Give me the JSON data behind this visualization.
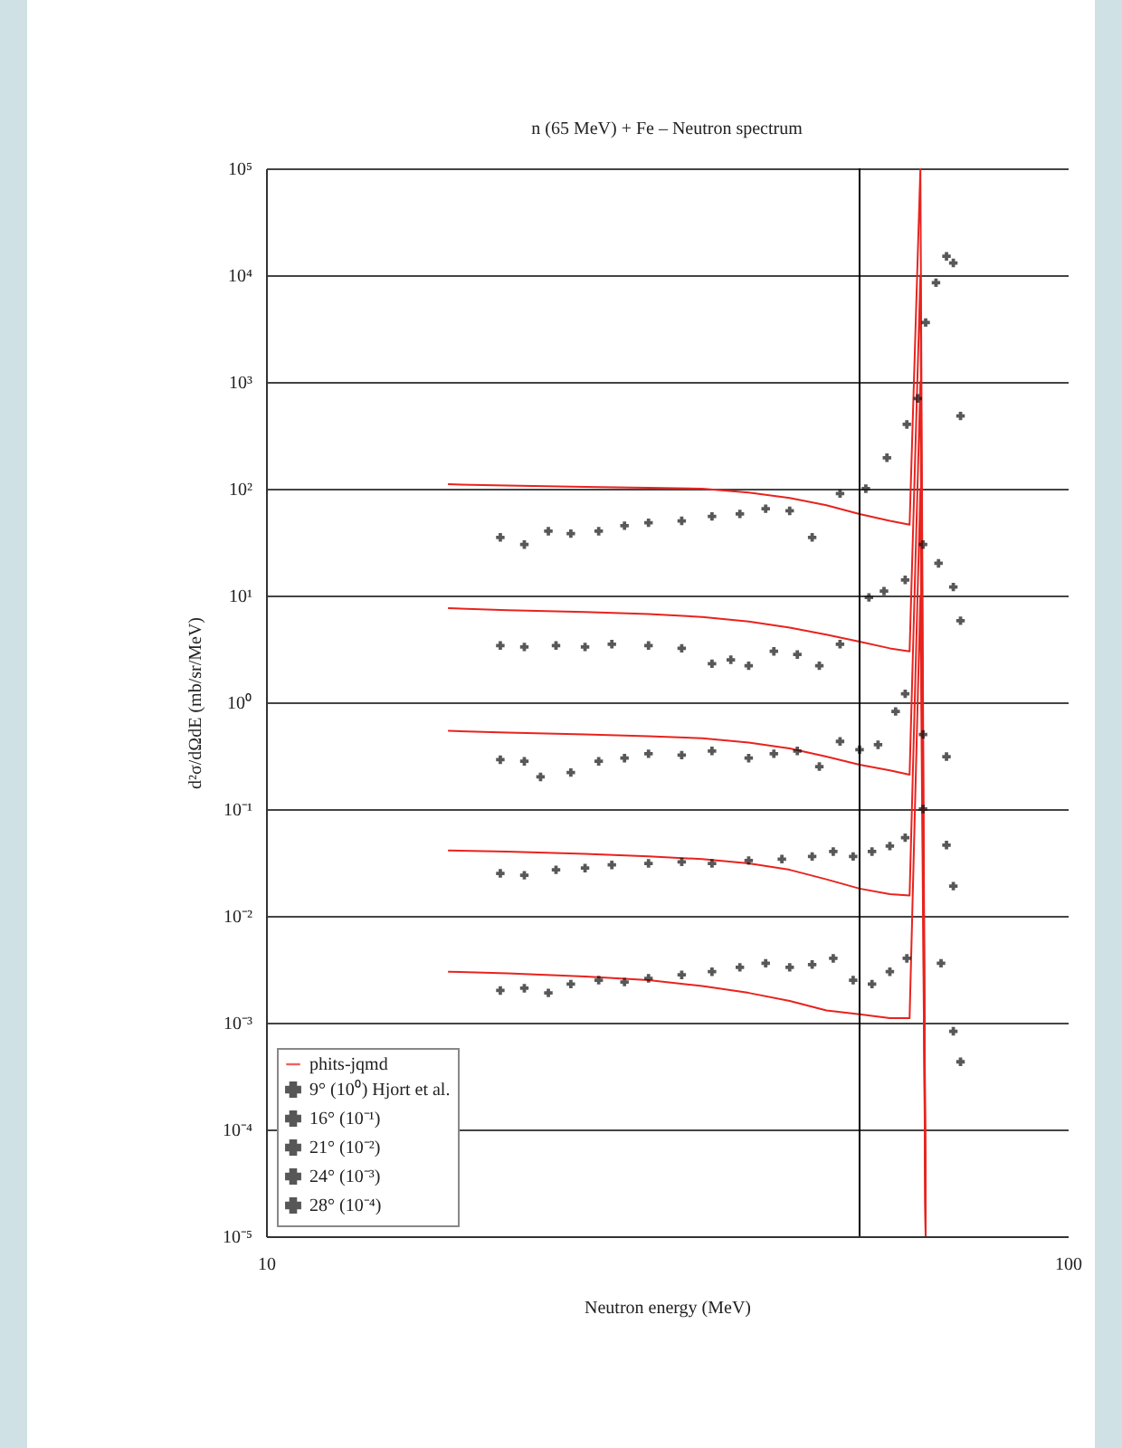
{
  "chart_data": {
    "type": "scatter",
    "title": "n (65 MeV) + Fe – Neutron spectrum",
    "xlabel": "Neutron energy (MeV)",
    "ylabel": "d²σ/dΩdE (mb/sr/MeV)",
    "log": "xy",
    "xlim": [
      10,
      100
    ],
    "xticks": [
      10,
      100
    ],
    "ylim": [
      1e-05,
      100000
    ],
    "yticks": [
      {
        "value": 1e-05,
        "label": "10⁻⁵"
      },
      {
        "value": 0.0001,
        "label": "10⁻⁴"
      },
      {
        "value": 0.001,
        "label": "10⁻³"
      },
      {
        "value": 0.01,
        "label": "10⁻²"
      },
      {
        "value": 0.1,
        "label": "10⁻¹"
      },
      {
        "value": 1,
        "label": "10⁰"
      },
      {
        "value": 10,
        "label": "10¹"
      },
      {
        "value": 100,
        "label": "10²"
      },
      {
        "value": 1000,
        "label": "10³"
      },
      {
        "value": 10000,
        "label": "10⁴"
      },
      {
        "value": 100000,
        "label": "10⁵"
      }
    ],
    "grid": "y",
    "legend": "bottom left",
    "marker": "cross",
    "ref_lines": [
      {
        "axis": "x",
        "value": 55,
        "color": "#000000"
      }
    ],
    "series": [
      {
        "name": "phits-jqmd",
        "type": "line",
        "marker": "none",
        "line_style": "solid",
        "color": "#e8231e",
        "x": [
          16.9,
          20,
          25,
          30,
          35,
          40,
          45,
          50,
          55,
          60,
          63.5,
          65.5,
          66.5
        ],
        "values": [
          110,
          107,
          104,
          102,
          100,
          92,
          82,
          70,
          58,
          50,
          46,
          100000,
          1e-05
        ]
      },
      {
        "type": "line",
        "marker": "none",
        "line_style": "solid",
        "color": "#e8231e",
        "x": [
          16.9,
          20,
          25,
          30,
          35,
          40,
          45,
          50,
          55,
          60,
          63.5,
          65.5,
          66.5
        ],
        "values": [
          7.6,
          7.3,
          7,
          6.7,
          6.3,
          5.7,
          5,
          4.3,
          3.7,
          3.2,
          3.0,
          10000,
          1e-05
        ]
      },
      {
        "type": "line",
        "marker": "none",
        "line_style": "solid",
        "color": "#e8231e",
        "x": [
          16.9,
          20,
          25,
          30,
          35,
          40,
          45,
          50,
          55,
          60,
          63.5,
          65.5,
          66.5
        ],
        "values": [
          0.54,
          0.52,
          0.5,
          0.48,
          0.46,
          0.42,
          0.37,
          0.31,
          0.26,
          0.23,
          0.21,
          1000,
          1e-05
        ]
      },
      {
        "type": "line",
        "marker": "none",
        "line_style": "solid",
        "color": "#e8231e",
        "x": [
          16.9,
          20,
          25,
          30,
          35,
          40,
          45,
          50,
          55,
          60,
          63.5,
          65.5,
          66.5
        ],
        "values": [
          0.041,
          0.04,
          0.038,
          0.036,
          0.034,
          0.031,
          0.027,
          0.022,
          0.018,
          0.016,
          0.0155,
          100,
          1e-05
        ]
      },
      {
        "type": "line",
        "marker": "none",
        "line_style": "solid",
        "color": "#e8231e",
        "x": [
          16.9,
          20,
          25,
          30,
          35,
          40,
          45,
          50,
          55,
          60,
          63.5,
          65.5,
          66.5
        ],
        "values": [
          0.003,
          0.0029,
          0.0027,
          0.0025,
          0.0022,
          0.0019,
          0.0016,
          0.0013,
          0.0012,
          0.0011,
          0.0011,
          10,
          1e-05
        ]
      },
      {
        "name": "9° (10⁰) Hjort et al.",
        "color": "#111111",
        "x": [
          19.6,
          21,
          22.5,
          24,
          26,
          28,
          30,
          33,
          36,
          39,
          42,
          45,
          48,
          52,
          56,
          59.5,
          63,
          65,
          66.5,
          68.5,
          70.6,
          72,
          73.5
        ],
        "values": [
          35,
          30,
          40,
          38,
          40,
          45,
          48,
          50,
          55,
          58,
          65,
          62,
          35,
          90,
          100,
          195,
          400,
          700,
          3600,
          8500,
          15000,
          13000,
          480
        ]
      },
      {
        "name": "16° (10⁻¹)",
        "color": "#111111",
        "x": [
          19.6,
          21,
          23,
          25,
          27,
          30,
          33,
          36,
          38,
          40,
          43,
          46,
          49,
          52,
          56.5,
          59,
          62.7,
          66,
          69,
          72,
          73.5
        ],
        "values": [
          3.4,
          3.3,
          3.4,
          3.3,
          3.5,
          3.4,
          3.2,
          2.3,
          2.5,
          2.2,
          3.0,
          2.8,
          2.2,
          3.5,
          9.6,
          11,
          14,
          30,
          20,
          12,
          5.8
        ]
      },
      {
        "name": "21° (10⁻²)",
        "color": "#111111",
        "x": [
          19.6,
          21,
          22,
          24,
          26,
          28,
          30,
          33,
          36,
          40,
          43,
          46,
          49,
          52,
          55,
          58,
          61,
          62.7,
          66,
          70.6
        ],
        "values": [
          0.29,
          0.28,
          0.2,
          0.22,
          0.28,
          0.3,
          0.33,
          0.32,
          0.35,
          0.3,
          0.33,
          0.35,
          0.25,
          0.43,
          0.36,
          0.4,
          0.82,
          1.2,
          0.5,
          0.31
        ]
      },
      {
        "name": "24° (10⁻³)",
        "color": "#111111",
        "x": [
          19.6,
          21,
          23,
          25,
          27,
          30,
          33,
          36,
          40,
          44,
          48,
          51,
          54,
          57,
          60,
          62.7,
          66,
          70.6,
          72
        ],
        "values": [
          0.025,
          0.024,
          0.027,
          0.028,
          0.03,
          0.031,
          0.032,
          0.031,
          0.033,
          0.034,
          0.036,
          0.04,
          0.036,
          0.04,
          0.045,
          0.054,
          0.1,
          0.046,
          0.019
        ]
      },
      {
        "name": "28° (10⁻⁴)",
        "color": "#111111",
        "x": [
          19.6,
          21,
          22.5,
          24,
          26,
          28,
          30,
          33,
          36,
          39,
          42,
          45,
          48,
          51,
          54,
          57,
          60,
          63,
          69.5,
          72,
          73.5
        ],
        "values": [
          0.002,
          0.0021,
          0.0019,
          0.0023,
          0.0025,
          0.0024,
          0.0026,
          0.0028,
          0.003,
          0.0033,
          0.0036,
          0.0033,
          0.0035,
          0.004,
          0.0025,
          0.0023,
          0.003,
          0.004,
          0.0036,
          0.00083,
          0.00043
        ]
      }
    ]
  }
}
